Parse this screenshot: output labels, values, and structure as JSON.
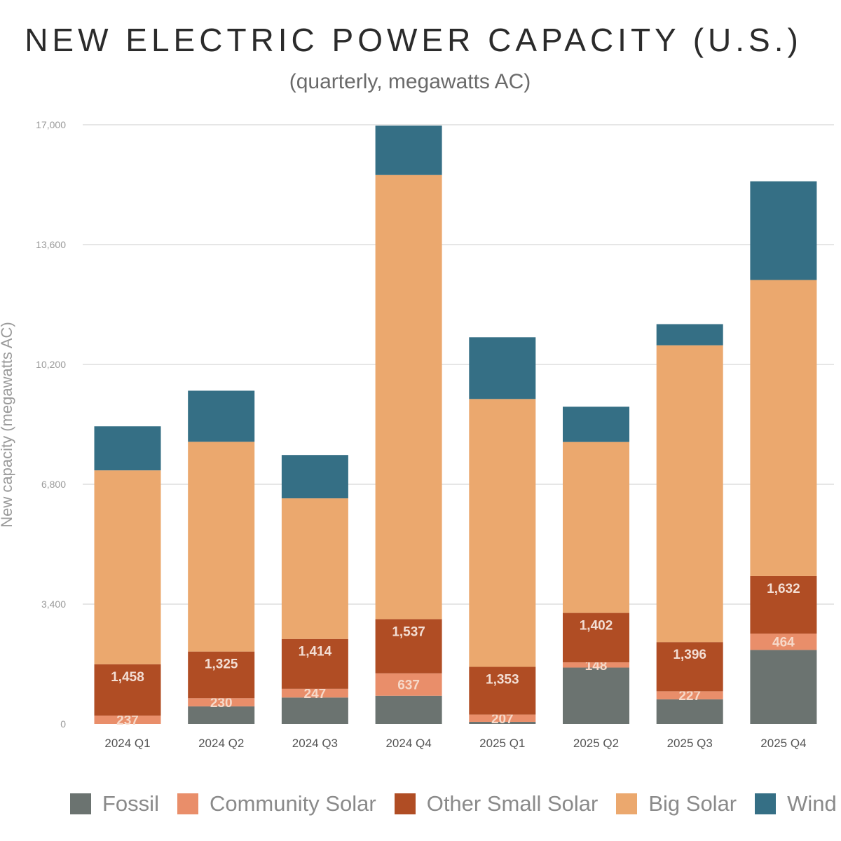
{
  "title": "NEW ELECTRIC POWER CAPACITY (U.S.)",
  "subtitle": "(quarterly, megawatts AC)",
  "colors": {
    "Fossil": "#6b7370",
    "Community Solar": "#e98e6a",
    "Other Small Solar": "#b04d24",
    "Big Solar": "#eba86e",
    "Wind": "#356f85"
  },
  "chart_data": {
    "type": "bar",
    "stacked": true,
    "title": "NEW ELECTRIC POWER CAPACITY (U.S.)",
    "subtitle": "(quarterly, megawatts AC)",
    "xlabel": "",
    "ylabel": "New capacity (megawatts AC)",
    "ylim": [
      0,
      17000
    ],
    "yticks": [
      0,
      3400,
      6800,
      10200,
      13600,
      17000
    ],
    "ytick_labels": [
      "0",
      "3,400",
      "6,800",
      "10,200",
      "13,600",
      "17,000"
    ],
    "grid": true,
    "legend_position": "bottom",
    "categories": [
      "2024 Q1",
      "2024 Q2",
      "2024 Q3",
      "2024 Q4",
      "2025 Q1",
      "2025 Q2",
      "2025 Q3",
      "2025 Q4"
    ],
    "series": [
      {
        "name": "Fossil",
        "values": [
          0,
          500,
          750,
          800,
          60,
          1600,
          700,
          2100
        ],
        "labels": [
          "",
          "",
          "",
          "",
          "",
          "",
          "",
          ""
        ]
      },
      {
        "name": "Community Solar",
        "values": [
          237,
          230,
          247,
          637,
          207,
          148,
          227,
          464
        ],
        "labels": [
          "237",
          "230",
          "247",
          "637",
          "207",
          "148",
          "227",
          "464"
        ]
      },
      {
        "name": "Other Small Solar",
        "values": [
          1458,
          1325,
          1414,
          1537,
          1353,
          1402,
          1396,
          1632
        ],
        "labels": [
          "1,458",
          "1,325",
          "1,414",
          "1,537",
          "1,353",
          "1,402",
          "1,396",
          "1,632"
        ]
      },
      {
        "name": "Big Solar",
        "values": [
          5500,
          5950,
          3990,
          12600,
          7600,
          4850,
          8420,
          8400
        ],
        "labels": [
          "",
          "",
          "",
          "",
          "",
          "",
          "",
          ""
        ]
      },
      {
        "name": "Wind",
        "values": [
          1250,
          1450,
          1230,
          1400,
          1750,
          1000,
          600,
          2800
        ],
        "labels": [
          "",
          "",
          "",
          "",
          "",
          "",
          "",
          ""
        ]
      }
    ]
  },
  "legend": {
    "items": [
      {
        "label": "Fossil",
        "color": "#6b7370"
      },
      {
        "label": "Community Solar",
        "color": "#e98e6a"
      },
      {
        "label": "Other Small Solar",
        "color": "#b04d24"
      },
      {
        "label": "Big Solar",
        "color": "#eba86e"
      },
      {
        "label": "Wind",
        "color": "#356f85"
      }
    ]
  }
}
